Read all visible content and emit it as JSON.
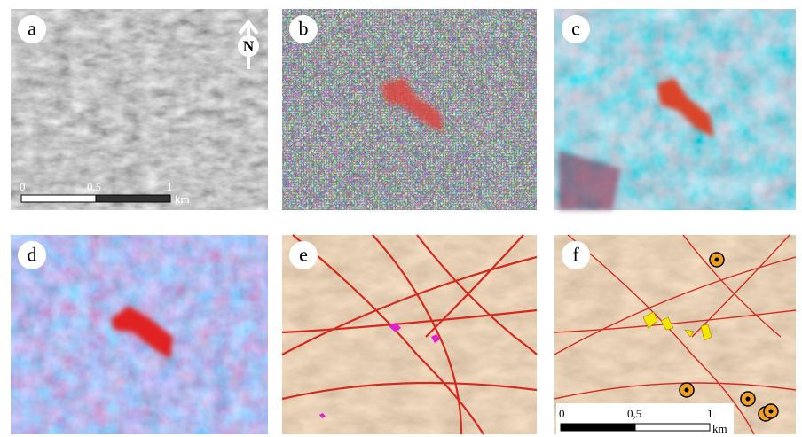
{
  "panels": [
    {
      "label": "a"
    },
    {
      "label": "b"
    },
    {
      "label": "c"
    },
    {
      "label": "d"
    },
    {
      "label": "e"
    },
    {
      "label": "f"
    }
  ],
  "north_arrow": "N",
  "scale_bars": [
    {
      "ticks": [
        "0",
        "0,5",
        "1"
      ],
      "unit": "km"
    },
    {
      "ticks": [
        "0",
        "0,5",
        "1"
      ],
      "unit": "km"
    }
  ]
}
